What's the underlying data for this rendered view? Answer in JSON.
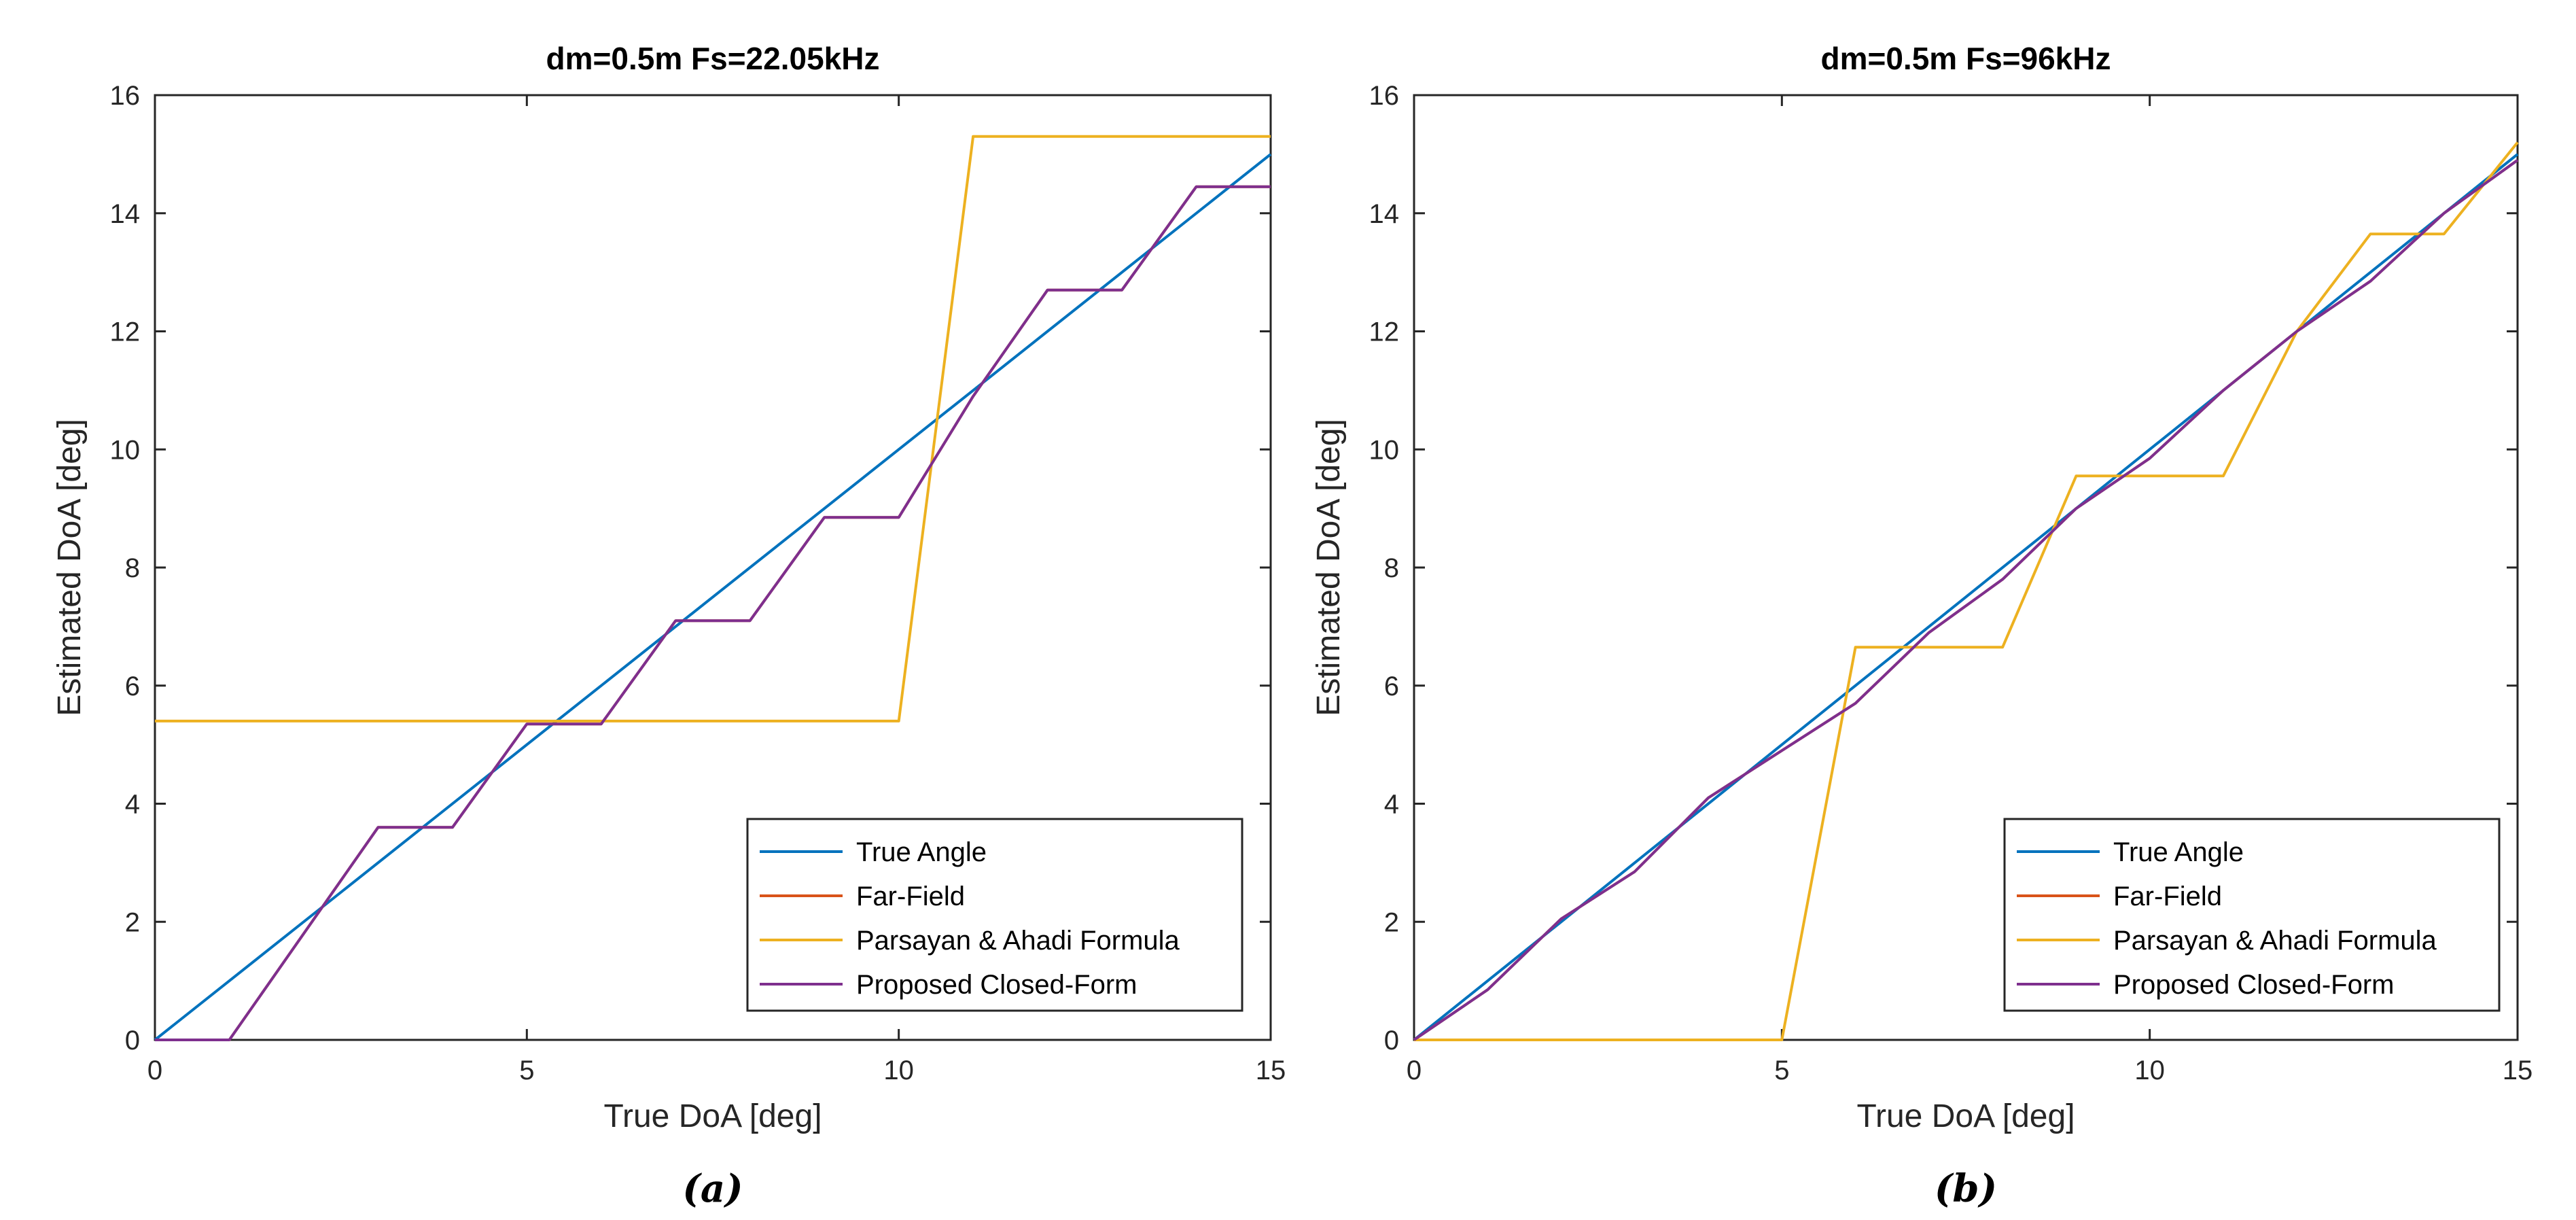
{
  "chart_data": [
    {
      "type": "line",
      "title": "dm=0.5m   Fs=22.05kHz",
      "xlabel": "True DoA [deg]",
      "ylabel": "Estimated DoA [deg]",
      "xlim": [
        0,
        15
      ],
      "ylim": [
        0,
        16
      ],
      "xticks": [
        "0",
        "5",
        "10",
        "15"
      ],
      "yticks": [
        "0",
        "2",
        "4",
        "6",
        "8",
        "10",
        "12",
        "14",
        "16"
      ],
      "grid": false,
      "legend_position": "bottom-right",
      "subplot_label": "(a)",
      "series": [
        {
          "name": "True Angle",
          "color": "#0072BD",
          "x": [
            0,
            15
          ],
          "y": [
            0,
            15
          ]
        },
        {
          "name": "Far-Field",
          "color": "#D95319",
          "x": [
            0,
            1,
            3,
            4,
            5,
            6,
            7,
            8,
            9,
            10,
            11,
            12,
            13,
            14,
            15
          ],
          "y": [
            0,
            0,
            3.6,
            3.6,
            5.35,
            5.35,
            7.1,
            7.1,
            8.85,
            8.85,
            10.9,
            12.7,
            12.7,
            14.45,
            14.45
          ]
        },
        {
          "name": "Parsayan & Ahadi Formula",
          "color": "#EDB120",
          "x": [
            0,
            10,
            11,
            15
          ],
          "y": [
            5.4,
            5.4,
            15.3,
            15.3
          ]
        },
        {
          "name": "Proposed Closed-Form",
          "color": "#7E2F8E",
          "x": [
            0,
            1,
            3,
            4,
            5,
            6,
            7,
            8,
            9,
            10,
            11,
            12,
            13,
            14,
            15
          ],
          "y": [
            0,
            0,
            3.6,
            3.6,
            5.35,
            5.35,
            7.1,
            7.1,
            8.85,
            8.85,
            10.9,
            12.7,
            12.7,
            14.45,
            14.45
          ]
        }
      ]
    },
    {
      "type": "line",
      "title": "dm=0.5m   Fs=96kHz",
      "xlabel": "True DoA [deg]",
      "ylabel": "Estimated DoA [deg]",
      "xlim": [
        0,
        15
      ],
      "ylim": [
        0,
        16
      ],
      "xticks": [
        "0",
        "5",
        "10",
        "15"
      ],
      "yticks": [
        "0",
        "2",
        "4",
        "6",
        "8",
        "10",
        "12",
        "14",
        "16"
      ],
      "grid": false,
      "legend_position": "bottom-right",
      "subplot_label": "(b)",
      "series": [
        {
          "name": "True Angle",
          "color": "#0072BD",
          "x": [
            0,
            15
          ],
          "y": [
            0,
            15
          ]
        },
        {
          "name": "Far-Field",
          "color": "#D95319",
          "x": [
            0,
            1,
            2,
            3,
            4,
            5,
            6,
            7,
            8,
            9,
            10,
            11,
            12,
            13,
            14,
            15
          ],
          "y": [
            0,
            0.85,
            2.05,
            2.85,
            4.1,
            4.9,
            5.7,
            6.9,
            7.8,
            9.0,
            9.85,
            11.0,
            12.0,
            12.85,
            14.0,
            14.9
          ]
        },
        {
          "name": "Parsayan & Ahadi Formula",
          "color": "#EDB120",
          "x": [
            0,
            5,
            6,
            8,
            9,
            11,
            12,
            13,
            14,
            15
          ],
          "y": [
            0,
            0,
            6.65,
            6.65,
            9.55,
            9.55,
            12.0,
            13.65,
            13.65,
            15.2
          ]
        },
        {
          "name": "Proposed Closed-Form",
          "color": "#7E2F8E",
          "x": [
            0,
            1,
            2,
            3,
            4,
            5,
            6,
            7,
            8,
            9,
            10,
            11,
            12,
            13,
            14,
            15
          ],
          "y": [
            0,
            0.85,
            2.05,
            2.85,
            4.1,
            4.9,
            5.7,
            6.9,
            7.8,
            9.0,
            9.85,
            11.0,
            12.0,
            12.85,
            14.0,
            14.9
          ]
        }
      ]
    }
  ]
}
